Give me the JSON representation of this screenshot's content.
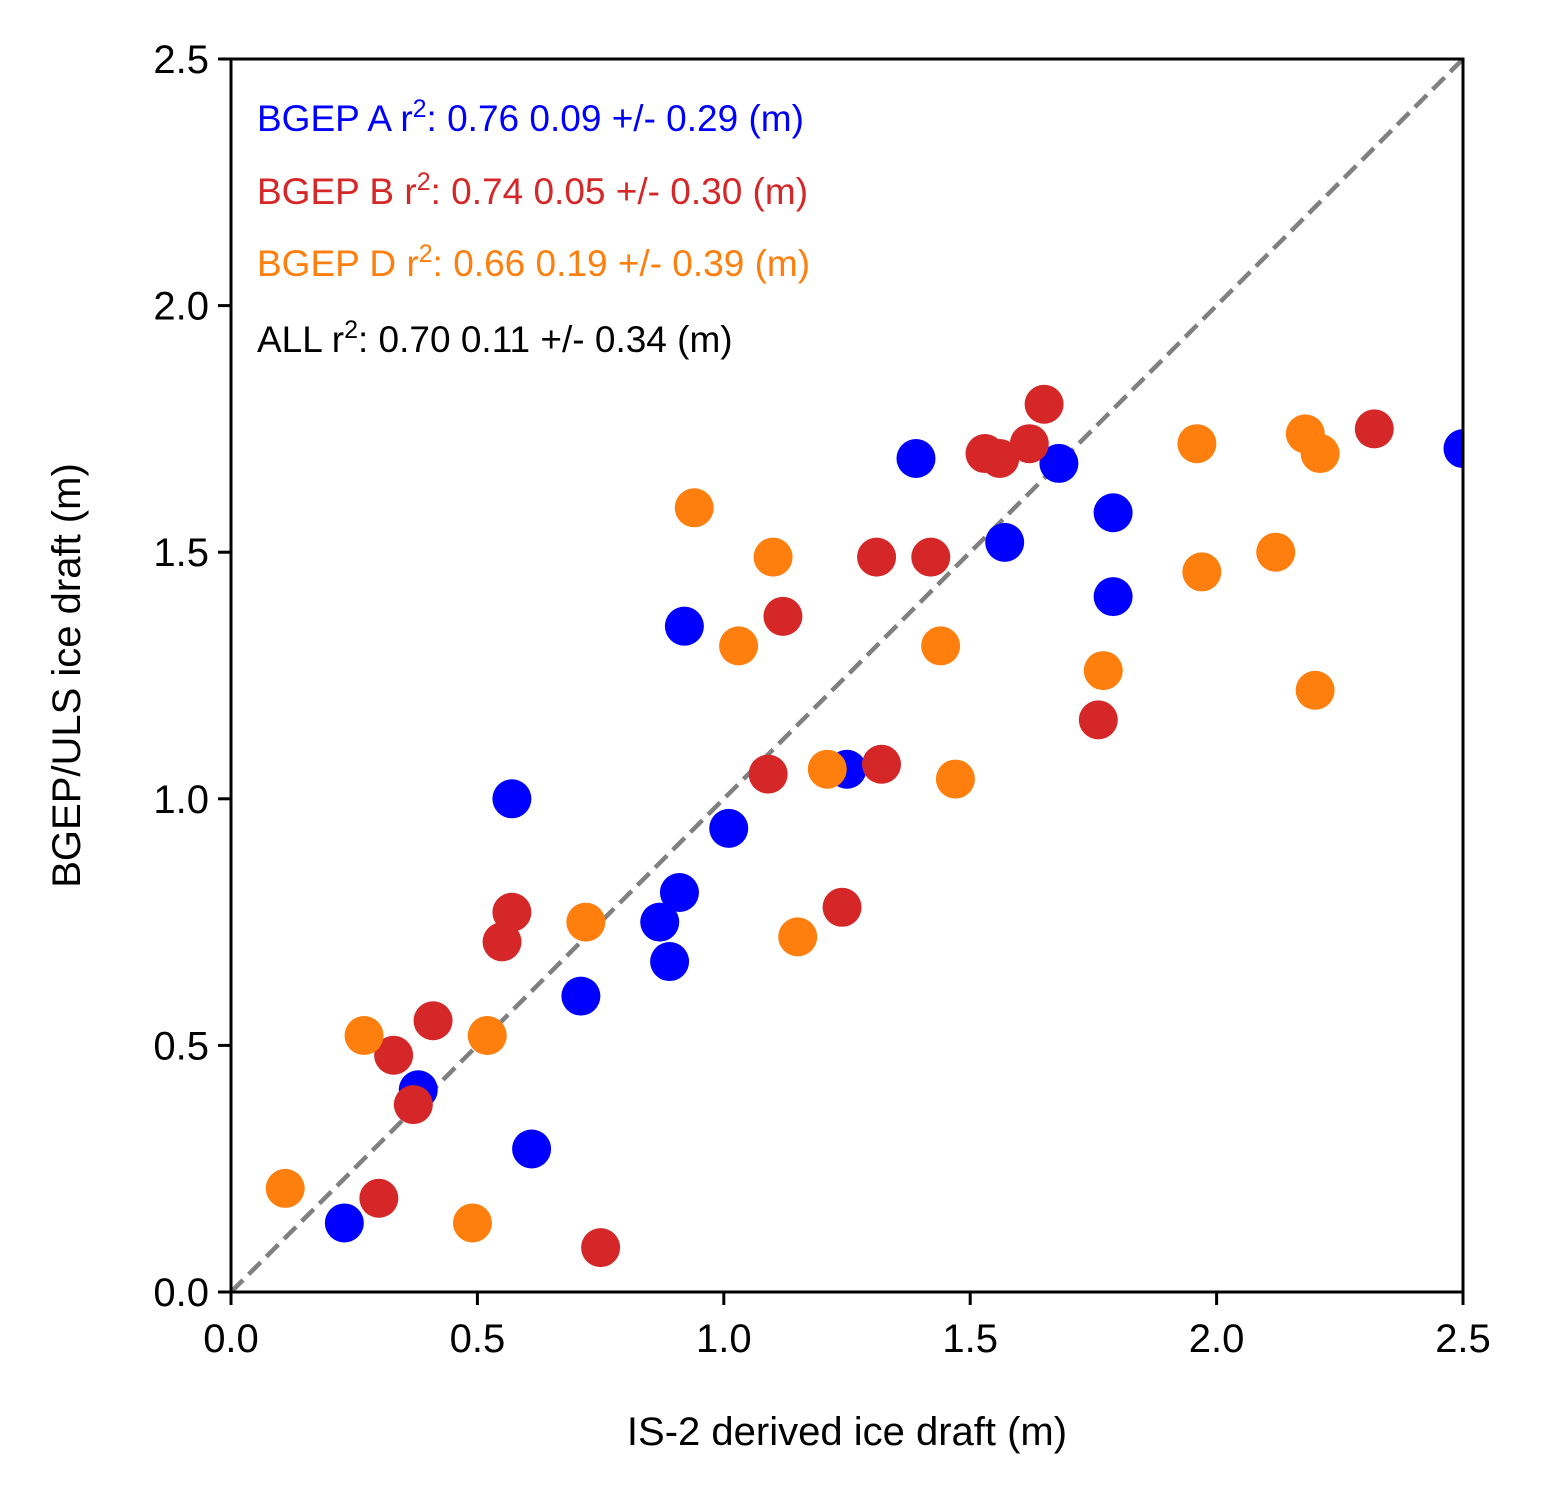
{
  "chart_data": {
    "type": "scatter",
    "title": "",
    "xlabel": "IS-2 derived ice draft (m)",
    "ylabel": "BGEP/ULS ice draft (m)",
    "xlim": [
      0.0,
      2.5
    ],
    "ylim": [
      0.0,
      2.5
    ],
    "xticks": [
      "0.0",
      "0.5",
      "1.0",
      "1.5",
      "2.0",
      "2.5"
    ],
    "yticks": [
      "0.0",
      "0.5",
      "1.0",
      "1.5",
      "2.0",
      "2.5"
    ],
    "grid": false,
    "reference_line": {
      "type": "1:1",
      "style": "dashed",
      "color": "#808080"
    },
    "series": [
      {
        "name": "BGEP A",
        "color": "#0000ff",
        "x": [
          0.23,
          0.38,
          0.57,
          0.61,
          0.71,
          0.87,
          0.89,
          0.91,
          0.92,
          1.01,
          1.25,
          1.39,
          1.57,
          1.68,
          1.79,
          1.79,
          2.5
        ],
        "y": [
          0.14,
          0.41,
          1.0,
          0.29,
          0.6,
          0.75,
          0.67,
          0.81,
          1.35,
          0.94,
          1.06,
          1.69,
          1.52,
          1.68,
          1.58,
          1.41,
          1.71
        ]
      },
      {
        "name": "BGEP B",
        "color": "#d62728",
        "x": [
          0.3,
          0.33,
          0.37,
          0.41,
          0.55,
          0.57,
          0.75,
          1.09,
          1.12,
          1.24,
          1.31,
          1.32,
          1.42,
          1.53,
          1.56,
          1.62,
          1.65,
          1.76,
          2.32
        ],
        "y": [
          0.19,
          0.48,
          0.38,
          0.55,
          0.71,
          0.77,
          0.09,
          1.05,
          1.37,
          0.78,
          1.49,
          1.07,
          1.49,
          1.7,
          1.69,
          1.72,
          1.8,
          1.16,
          1.75
        ]
      },
      {
        "name": "BGEP D",
        "color": "#ff7f0e",
        "x": [
          0.11,
          0.27,
          0.49,
          0.52,
          0.72,
          0.94,
          1.03,
          1.1,
          1.15,
          1.21,
          1.44,
          1.47,
          1.77,
          1.96,
          1.97,
          2.12,
          2.18,
          2.2,
          2.21
        ],
        "y": [
          0.21,
          0.52,
          0.14,
          0.52,
          0.75,
          1.59,
          1.31,
          1.49,
          0.72,
          1.06,
          1.31,
          1.04,
          1.26,
          1.72,
          1.46,
          1.5,
          1.74,
          1.22,
          1.7
        ]
      }
    ],
    "annotations": [
      {
        "label": "BGEP A",
        "stat": "r",
        "sup": "2",
        "value": ": 0.76  0.09 +/- 0.29 (m)",
        "color": "#0000ff"
      },
      {
        "label": "BGEP B",
        "stat": "r",
        "sup": "2",
        "value": ": 0.74  0.05 +/- 0.30 (m)",
        "color": "#d62728"
      },
      {
        "label": "BGEP D",
        "stat": "r",
        "sup": "2",
        "value": ": 0.66  0.19 +/- 0.39 (m)",
        "color": "#ff7f0e"
      },
      {
        "label": "ALL",
        "stat": "r",
        "sup": "2",
        "value": ": 0.70  0.11 +/- 0.34 (m)",
        "color": "#000000"
      }
    ]
  }
}
